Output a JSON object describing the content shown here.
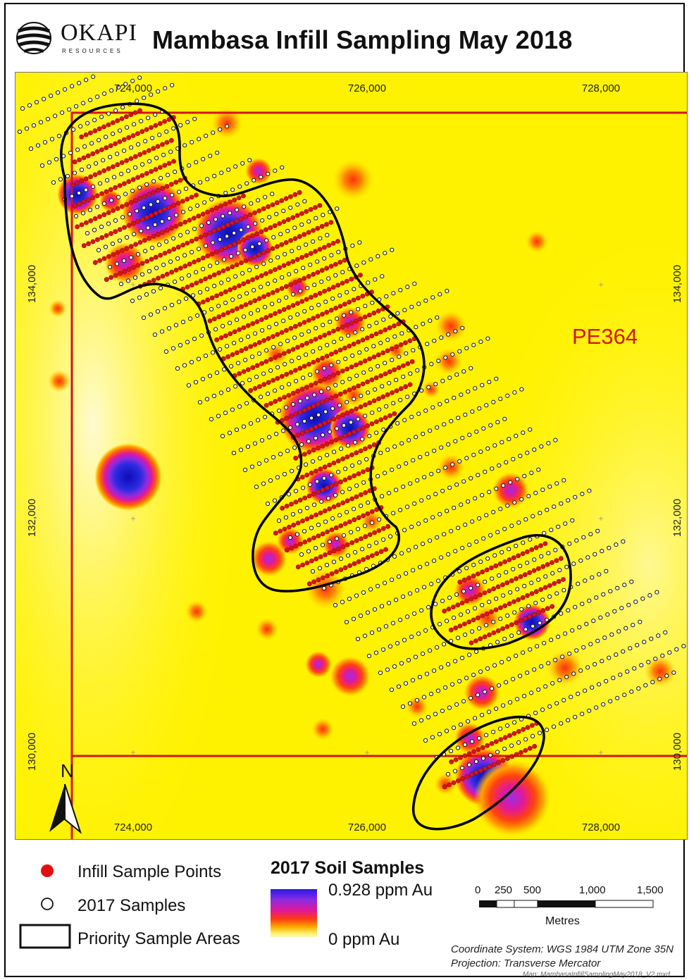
{
  "header": {
    "logo_word": "OKAPI",
    "logo_sub": "RESOURCES",
    "title": "Mambasa Infill Sampling May 2018"
  },
  "map": {
    "x_ticks": [
      "724,000",
      "726,000",
      "728,000"
    ],
    "y_ticks": [
      "134,000",
      "132,000",
      "130,000"
    ],
    "tenement_label": "PE364",
    "north_label": "N",
    "colors": {
      "background": "#fff200",
      "tenement": "#d4141b",
      "infill": "#d9131a",
      "anomaly_high": "#1a1ad0",
      "anomaly_mid": "#e2189a"
    }
  },
  "legend": {
    "infill_label": "Infill Sample Points",
    "samples_label": "2017 Samples",
    "priority_label": "Priority Sample Areas",
    "grad_title": "2017 Soil Samples",
    "grad_max": "0.928 ppm Au",
    "grad_min": "0 ppm Au",
    "scale_ticks": [
      "0",
      "250",
      "500",
      "1,000",
      "1,500"
    ],
    "scale_unit": "Metres",
    "coord_system": "Coordinate System: WGS 1984 UTM Zone 35N",
    "projection": "Projection: Transverse Mercator",
    "map_ref": "Map: MambasaInfillSamplingMay2018_V2.mxd"
  }
}
